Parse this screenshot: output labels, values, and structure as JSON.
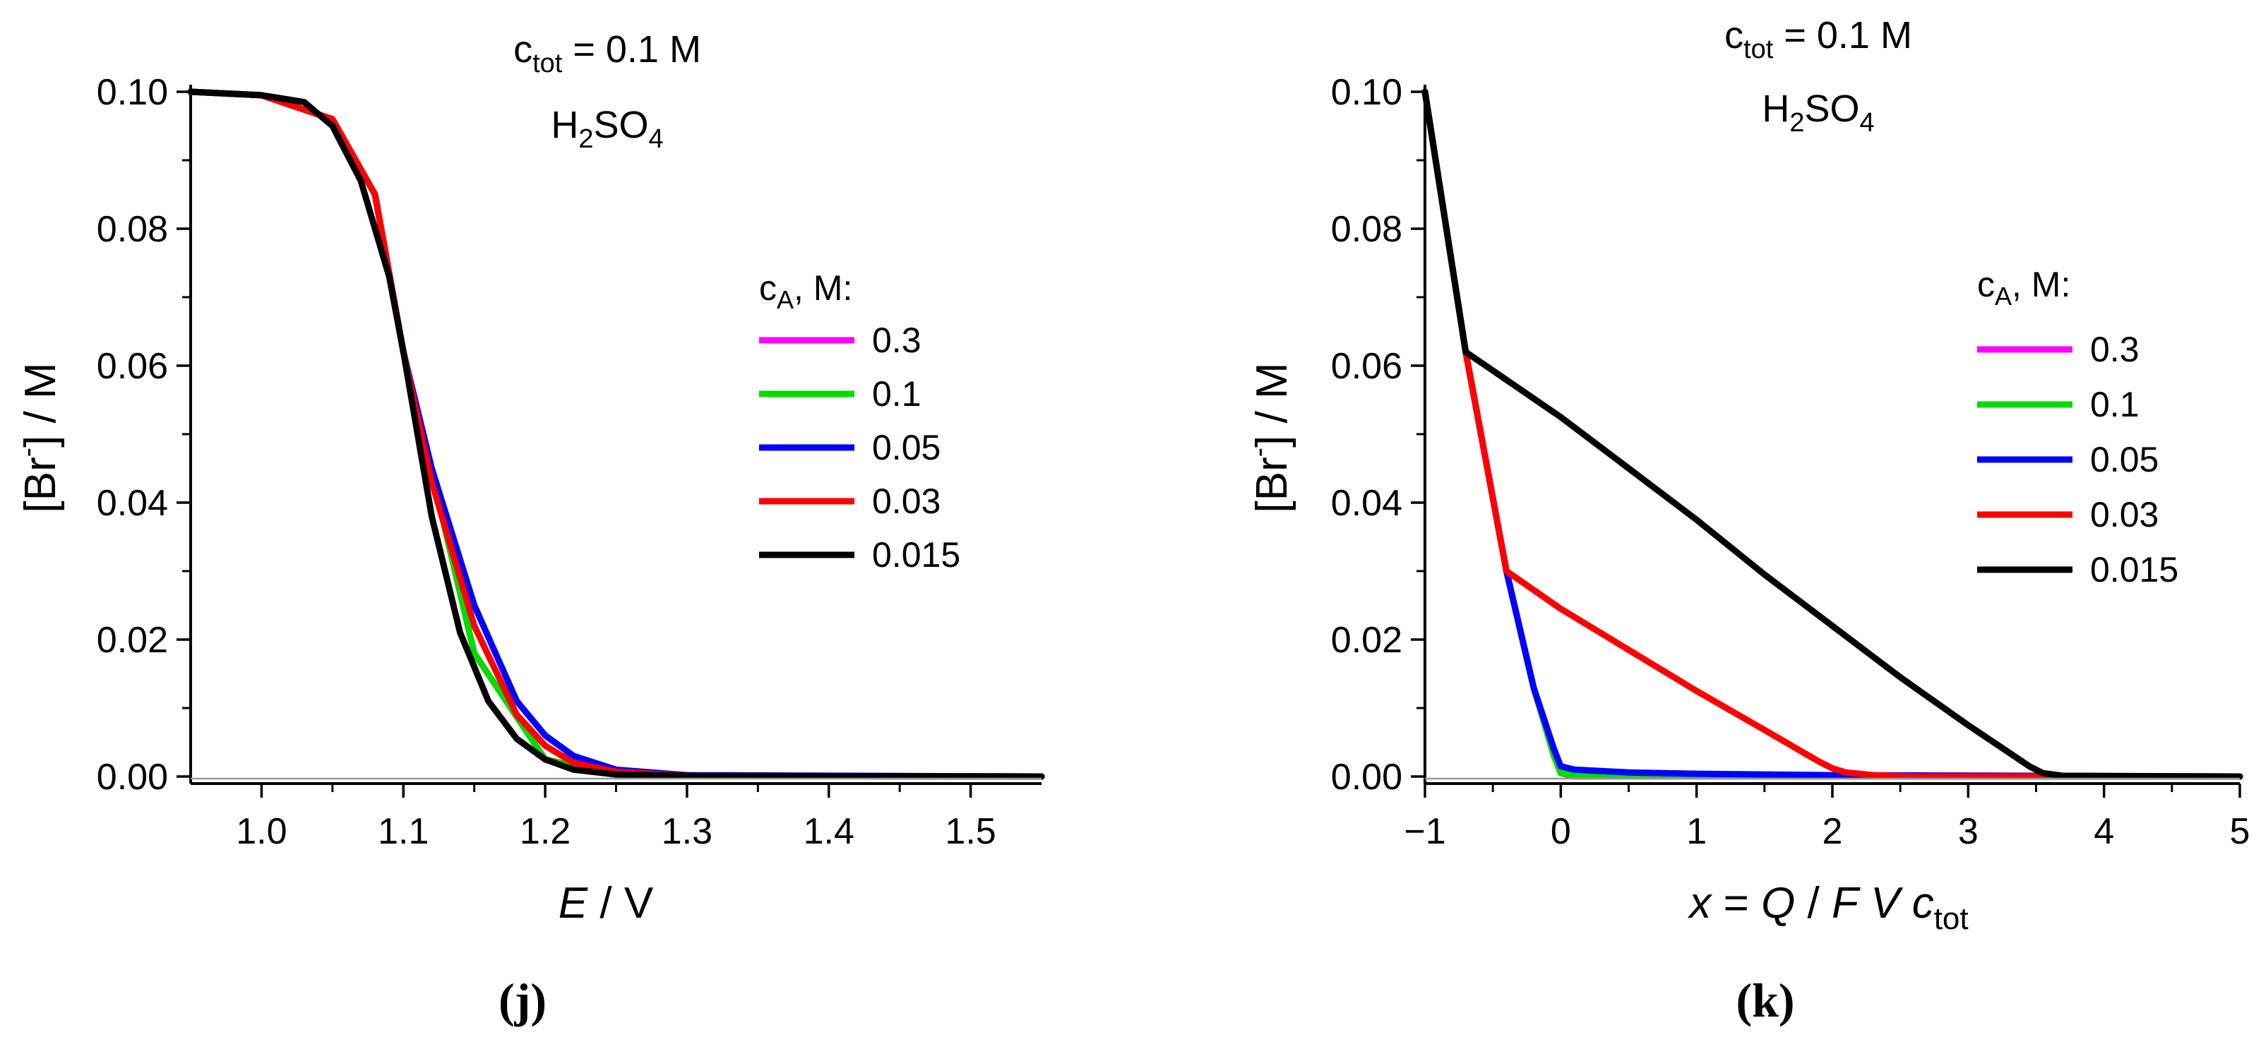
{
  "chart_data": [
    {
      "type": "line",
      "panel_label": "(j)",
      "annotation": {
        "line1_prefix": "c",
        "line1_sub": "tot",
        "line1_suffix": " = 0.1 M",
        "line2_prefix": "H",
        "line2_sub1": "2",
        "line2_mid": "SO",
        "line2_sub2": "4"
      },
      "xlabel": {
        "italic": "E",
        "rest": " / V"
      },
      "ylabel": {
        "before": "[Br",
        "sup": "-",
        "after": "] / M"
      },
      "xlim": [
        0.95,
        1.55
      ],
      "ylim": [
        0.0,
        0.1
      ],
      "xticks": [
        {
          "v": 1.0,
          "l": "1.0"
        },
        {
          "v": 1.1,
          "l": "1.1"
        },
        {
          "v": 1.2,
          "l": "1.2"
        },
        {
          "v": 1.3,
          "l": "1.3"
        },
        {
          "v": 1.4,
          "l": "1.4"
        },
        {
          "v": 1.5,
          "l": "1.5"
        }
      ],
      "yticks": [
        {
          "v": 0.0,
          "l": "0.00"
        },
        {
          "v": 0.02,
          "l": "0.02"
        },
        {
          "v": 0.04,
          "l": "0.04"
        },
        {
          "v": 0.06,
          "l": "0.06"
        },
        {
          "v": 0.08,
          "l": "0.08"
        },
        {
          "v": 0.1,
          "l": "0.10"
        }
      ],
      "legend": {
        "title_prefix": "c",
        "title_sub": "A",
        "title_suffix": ", M:",
        "position": "right"
      },
      "series": [
        {
          "name": "0.3",
          "color": "#ff00ff",
          "x": [
            0.95,
            1.0,
            1.05,
            1.08,
            1.1,
            1.15,
            1.2,
            1.25,
            1.3,
            1.55
          ],
          "y": [
            0.1,
            0.0995,
            0.096,
            0.085,
            0.062,
            0.018,
            0.0025,
            0.0003,
            0.0001,
            0.0
          ]
        },
        {
          "name": "0.1",
          "color": "#00dd00",
          "x": [
            0.95,
            1.0,
            1.05,
            1.08,
            1.1,
            1.15,
            1.2,
            1.25,
            1.3,
            1.55
          ],
          "y": [
            0.1,
            0.0995,
            0.096,
            0.085,
            0.062,
            0.018,
            0.0025,
            0.0003,
            0.0001,
            0.0
          ]
        },
        {
          "name": "0.05",
          "color": "#0000ff",
          "x": [
            0.95,
            1.0,
            1.05,
            1.08,
            1.1,
            1.12,
            1.15,
            1.18,
            1.2,
            1.22,
            1.25,
            1.3,
            1.55
          ],
          "y": [
            0.1,
            0.0995,
            0.096,
            0.085,
            0.062,
            0.045,
            0.025,
            0.011,
            0.006,
            0.003,
            0.001,
            0.0002,
            0.0
          ]
        },
        {
          "name": "0.03",
          "color": "#ff0000",
          "x": [
            0.95,
            1.0,
            1.05,
            1.08,
            1.1,
            1.12,
            1.15,
            1.18,
            1.2,
            1.22,
            1.25,
            1.3,
            1.55
          ],
          "y": [
            0.1,
            0.0995,
            0.096,
            0.085,
            0.062,
            0.043,
            0.022,
            0.009,
            0.0045,
            0.002,
            0.0007,
            0.0001,
            0.0
          ]
        },
        {
          "name": "0.015",
          "color": "#000000",
          "x": [
            0.95,
            1.0,
            1.03,
            1.05,
            1.07,
            1.09,
            1.1,
            1.12,
            1.14,
            1.16,
            1.18,
            1.2,
            1.22,
            1.25,
            1.3,
            1.55
          ],
          "y": [
            0.1,
            0.0995,
            0.0985,
            0.095,
            0.087,
            0.073,
            0.062,
            0.038,
            0.021,
            0.011,
            0.0055,
            0.0025,
            0.001,
            0.0003,
            0.0001,
            0.0
          ]
        }
      ]
    },
    {
      "type": "line",
      "panel_label": "(k)",
      "annotation": {
        "line1_prefix": "c",
        "line1_sub": "tot",
        "line1_suffix": " = 0.1 M",
        "line2_prefix": "H",
        "line2_sub1": "2",
        "line2_mid": "SO",
        "line2_sub2": "4"
      },
      "xlabel": {
        "italic1": "x",
        "mid1": " = ",
        "italic2": "Q",
        "mid2": " / ",
        "italic3": "F",
        "mid3": " ",
        "italic4": "V",
        "mid4": " ",
        "italic5": "c",
        "sub": "tot"
      },
      "ylabel": {
        "before": "[Br",
        "sup": "-",
        "after": "] / M"
      },
      "xlim": [
        -1,
        5
      ],
      "ylim": [
        0.0,
        0.1
      ],
      "xticks": [
        {
          "v": -1,
          "l": "−1"
        },
        {
          "v": 0,
          "l": "0"
        },
        {
          "v": 1,
          "l": "1"
        },
        {
          "v": 2,
          "l": "2"
        },
        {
          "v": 3,
          "l": "3"
        },
        {
          "v": 4,
          "l": "4"
        },
        {
          "v": 5,
          "l": "5"
        }
      ],
      "yticks": [
        {
          "v": 0.0,
          "l": "0.00"
        },
        {
          "v": 0.02,
          "l": "0.02"
        },
        {
          "v": 0.04,
          "l": "0.04"
        },
        {
          "v": 0.06,
          "l": "0.06"
        },
        {
          "v": 0.08,
          "l": "0.08"
        },
        {
          "v": 0.1,
          "l": "0.10"
        }
      ],
      "legend": {
        "title_prefix": "c",
        "title_sub": "A",
        "title_suffix": ", M:",
        "position": "right"
      },
      "series": [
        {
          "name": "0.3",
          "color": "#ff00ff",
          "x": [
            -1,
            -0.7,
            -0.4,
            -0.2,
            -0.05,
            0.0,
            0.1,
            5
          ],
          "y": [
            0.1,
            0.062,
            0.03,
            0.013,
            0.003,
            0.0005,
            0.0,
            0.0
          ]
        },
        {
          "name": "0.1",
          "color": "#00dd00",
          "x": [
            -1,
            -0.7,
            -0.4,
            -0.2,
            -0.05,
            0.0,
            0.1,
            0.3,
            5
          ],
          "y": [
            0.1,
            0.062,
            0.03,
            0.013,
            0.003,
            0.0005,
            0.0002,
            0.0,
            0.0
          ]
        },
        {
          "name": "0.05",
          "color": "#0000ff",
          "x": [
            -1,
            -0.7,
            -0.4,
            -0.2,
            -0.05,
            0.0,
            0.1,
            0.5,
            1.0,
            2.0,
            5
          ],
          "y": [
            0.1,
            0.062,
            0.03,
            0.013,
            0.004,
            0.0015,
            0.001,
            0.0006,
            0.0004,
            0.0002,
            0.0
          ]
        },
        {
          "name": "0.03",
          "color": "#ff0000",
          "x": [
            -1,
            -0.7,
            -0.4,
            0.0,
            0.5,
            1.0,
            1.5,
            1.9,
            2.0,
            2.1,
            2.3,
            2.6,
            5
          ],
          "y": [
            0.1,
            0.062,
            0.03,
            0.0245,
            0.0185,
            0.0125,
            0.0068,
            0.0022,
            0.0012,
            0.0006,
            0.0002,
            0.0,
            0.0
          ]
        },
        {
          "name": "0.015",
          "color": "#000000",
          "x": [
            -1,
            -0.7,
            0.0,
            0.5,
            1.0,
            1.5,
            2.0,
            2.5,
            3.0,
            3.3,
            3.45,
            3.55,
            3.7,
            5
          ],
          "y": [
            0.1,
            0.062,
            0.0525,
            0.045,
            0.0375,
            0.0295,
            0.022,
            0.0145,
            0.0075,
            0.0035,
            0.0015,
            0.0005,
            0.0001,
            0.0
          ]
        }
      ]
    }
  ]
}
